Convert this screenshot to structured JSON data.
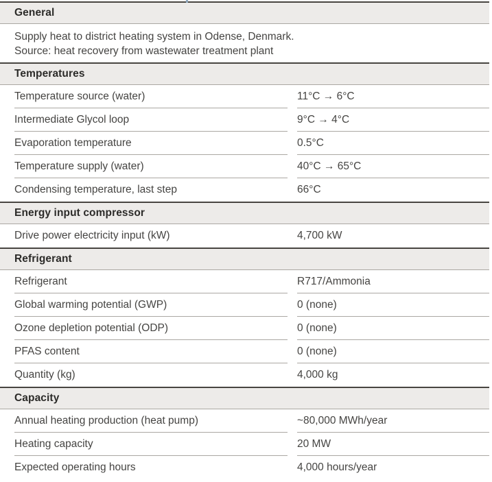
{
  "colors": {
    "section_band_bg": "#edebe9",
    "dark_rule": "#474440",
    "light_rule": "#aaa7a2",
    "header_text": "#2c2b29",
    "body_text": "#454442"
  },
  "sections": [
    {
      "title": "General",
      "description_lines": [
        "Supply heat to district heating system in Odense, Denmark.",
        "Source: heat recovery from wastewater treatment plant"
      ],
      "rows": []
    },
    {
      "title": "Temperatures",
      "rows": [
        {
          "label": "Temperature source (water)",
          "value": "11°C → 6°C"
        },
        {
          "label": "Intermediate Glycol loop",
          "value": "9°C → 4°C"
        },
        {
          "label": "Evaporation temperature",
          "value": "0.5°C"
        },
        {
          "label": "Temperature supply (water)",
          "value": "40°C → 65°C"
        },
        {
          "label": "Condensing temperature, last step",
          "value": "66°C"
        }
      ]
    },
    {
      "title": "Energy input compressor",
      "rows": [
        {
          "label": "Drive power electricity input (kW)",
          "value": "4,700 kW"
        }
      ]
    },
    {
      "title": "Refrigerant",
      "rows": [
        {
          "label": "Refrigerant",
          "value": "R717/Ammonia"
        },
        {
          "label": "Global warming potential (GWP)",
          "value": "0 (none)"
        },
        {
          "label": "Ozone depletion potential (ODP)",
          "value": "0 (none)"
        },
        {
          "label": "PFAS content",
          "value": "0 (none)"
        },
        {
          "label": "Quantity (kg)",
          "value": "4,000 kg"
        }
      ]
    },
    {
      "title": "Capacity",
      "rows": [
        {
          "label": "Annual heating production (heat pump)",
          "value": "~80,000 MWh/year"
        },
        {
          "label": "Heating capacity",
          "value": "20 MW"
        },
        {
          "label": "Expected operating hours",
          "value": "4,000 hours/year"
        }
      ]
    }
  ]
}
